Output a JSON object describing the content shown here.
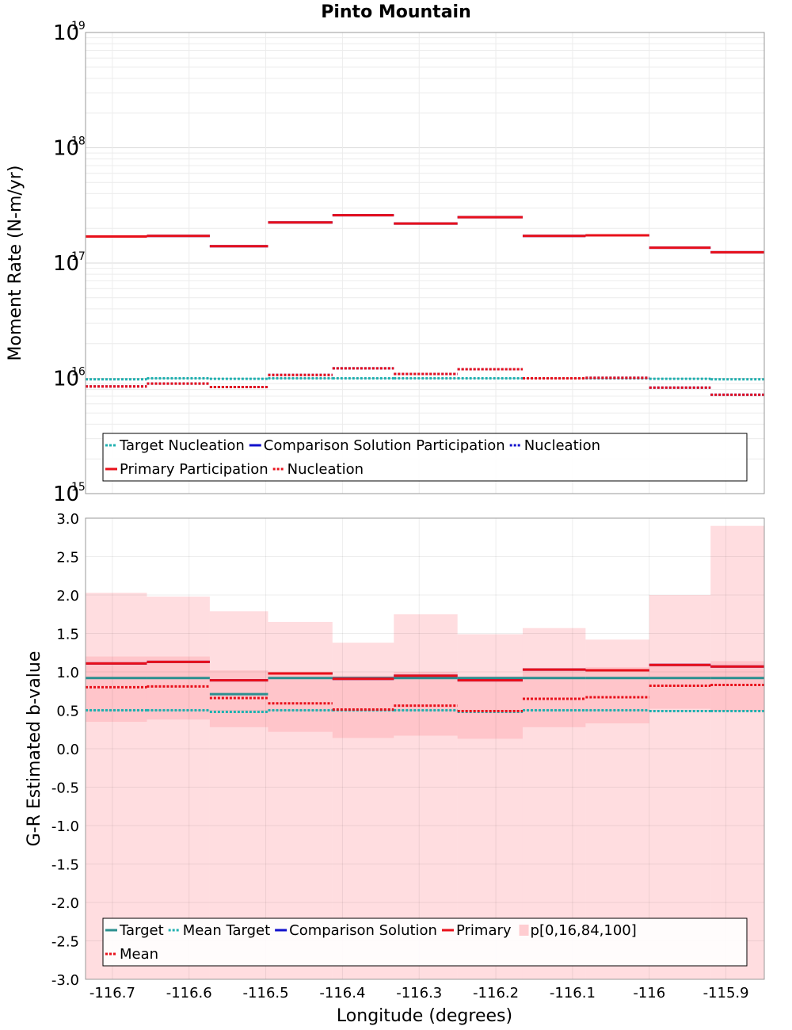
{
  "chart_data": [
    {
      "type": "line",
      "title": "Pinto Mountain",
      "xlabel": "",
      "ylabel": "Moment Rate (N-m/yr)",
      "yscale": "log",
      "ylim": [
        1000000000000000.0,
        1e+19
      ],
      "xlim": [
        -116.735,
        -115.85
      ],
      "grid": true,
      "legend_placement": "bottom",
      "y_tick_labels": [
        {
          "base": "10",
          "exp": "15",
          "value": 1000000000000000.0
        },
        {
          "base": "10",
          "exp": "16",
          "value": 1e+16
        },
        {
          "base": "10",
          "exp": "17",
          "value": 1e+17
        },
        {
          "base": "10",
          "exp": "18",
          "value": 1e+18
        },
        {
          "base": "10",
          "exp": "19",
          "value": 1e+19
        }
      ],
      "bin_edges": [
        -116.735,
        -116.655,
        -116.573,
        -116.497,
        -116.413,
        -116.333,
        -116.25,
        -116.165,
        -116.083,
        -116.0,
        -115.92,
        -115.85
      ],
      "series": [
        {
          "name": "Target Nucleation",
          "color": "#20b0b0",
          "dash": "dotted",
          "values": [
            9800000000000000.0,
            1e+16,
            9900000000000000.0,
            1e+16,
            1e+16,
            1e+16,
            1e+16,
            1e+16,
            1e+16,
            9900000000000000.0,
            9800000000000000.0
          ]
        },
        {
          "name": "Comparison Solution Participation",
          "color": "#1010cc",
          "dash": "solid",
          "values": [
            1.7e+17,
            1.72e+17,
            1.4e+17,
            2.25e+17,
            2.6e+17,
            2.2e+17,
            2.5e+17,
            1.72e+17,
            1.74e+17,
            1.36e+17,
            1.24e+17
          ]
        },
        {
          "name": "Nucleation",
          "color": "#1010cc",
          "dash": "dotted",
          "values": [
            8500000000000000.0,
            9000000000000000.0,
            8400000000000000.0,
            1.07e+16,
            1.22e+16,
            1.09e+16,
            1.2e+16,
            1e+16,
            1.01e+16,
            8300000000000000.0,
            7200000000000000.0
          ]
        },
        {
          "name": "Primary Participation",
          "color": "#e8101a",
          "dash": "solid",
          "values": [
            1.7e+17,
            1.72e+17,
            1.4e+17,
            2.25e+17,
            2.6e+17,
            2.2e+17,
            2.5e+17,
            1.72e+17,
            1.74e+17,
            1.36e+17,
            1.24e+17
          ]
        },
        {
          "name": "Nucleation",
          "color": "#e8101a",
          "dash": "dotted",
          "values": [
            8500000000000000.0,
            9000000000000000.0,
            8400000000000000.0,
            1.07e+16,
            1.22e+16,
            1.09e+16,
            1.2e+16,
            1e+16,
            1.01e+16,
            8300000000000000.0,
            7200000000000000.0
          ]
        }
      ],
      "legend": [
        [
          "Target Nucleation",
          "Comparison Solution Participation",
          "Nucleation"
        ],
        [
          "Primary Participation",
          "Nucleation"
        ]
      ]
    },
    {
      "type": "line",
      "title": "",
      "xlabel": "Longitude (degrees)",
      "ylabel": "G-R Estimated b-value",
      "ylim": [
        -3.0,
        3.0
      ],
      "xlim": [
        -116.735,
        -115.85
      ],
      "grid": true,
      "legend_placement": "bottom",
      "x_ticks": [
        -116.7,
        -116.6,
        -116.5,
        -116.4,
        -116.3,
        -116.2,
        -116.1,
        -116.0,
        -115.9
      ],
      "x_tick_labels": [
        "-116.7",
        "-116.6",
        "-116.5",
        "-116.4",
        "-116.3",
        "-116.2",
        "-116.1",
        "-116",
        "-115.9"
      ],
      "y_ticks": [
        3.0,
        2.5,
        2.0,
        1.5,
        1.0,
        0.5,
        0.0,
        -0.5,
        -1.0,
        -1.5,
        -2.0,
        -2.5,
        -3.0
      ],
      "y_tick_labels": [
        "3.0",
        "2.5",
        "2.0",
        "1.5",
        "1.0",
        "0.5",
        "0.0",
        "-0.5",
        "-1.0",
        "-1.5",
        "-2.0",
        "-2.5",
        "-3.0"
      ],
      "bin_edges": [
        -116.735,
        -116.655,
        -116.573,
        -116.497,
        -116.413,
        -116.333,
        -116.25,
        -116.165,
        -116.083,
        -116.0,
        -115.92,
        -115.85
      ],
      "band_outer": {
        "name": "p[0,16,84,100]",
        "color": "#ff9ea6",
        "low": [
          -3,
          -3,
          -3,
          -3,
          -3,
          -3,
          -3,
          -3,
          -3,
          -3,
          -3
        ],
        "high": [
          2.03,
          1.98,
          1.79,
          1.65,
          1.38,
          1.75,
          1.49,
          1.57,
          1.42,
          2.0,
          2.9
        ]
      },
      "band_inner": {
        "color": "#ff9ea6",
        "low": [
          0.35,
          0.38,
          0.28,
          0.22,
          0.14,
          0.17,
          0.13,
          0.28,
          0.33,
          0.52,
          0.49
        ],
        "high": [
          1.2,
          1.2,
          1.02,
          1.0,
          0.95,
          1.0,
          0.94,
          1.05,
          1.06,
          1.1,
          1.14
        ]
      },
      "series": [
        {
          "name": "Target",
          "color": "#2b8f8f",
          "dash": "solid",
          "values": [
            0.92,
            0.92,
            0.71,
            0.92,
            0.92,
            0.92,
            0.92,
            0.92,
            0.92,
            0.92,
            0.92
          ]
        },
        {
          "name": "Mean Target",
          "color": "#20b0b0",
          "dash": "dotted",
          "values": [
            0.5,
            0.5,
            0.48,
            0.5,
            0.5,
            0.5,
            0.48,
            0.5,
            0.5,
            0.49,
            0.49
          ]
        },
        {
          "name": "Comparison Solution",
          "color": "#1010cc",
          "dash": "solid",
          "values": [
            1.11,
            1.13,
            0.89,
            0.98,
            0.91,
            0.95,
            0.89,
            1.03,
            1.02,
            1.09,
            1.07
          ]
        },
        {
          "name": "Primary",
          "color": "#e8101a",
          "dash": "solid",
          "values": [
            1.11,
            1.13,
            0.89,
            0.98,
            0.91,
            0.95,
            0.89,
            1.03,
            1.02,
            1.09,
            1.07
          ]
        },
        {
          "name": "Mean",
          "color": "#e8101a",
          "dash": "dotted",
          "values": [
            0.8,
            0.81,
            0.66,
            0.59,
            0.51,
            0.56,
            0.49,
            0.65,
            0.67,
            0.82,
            0.83
          ]
        }
      ],
      "legend": [
        [
          "Target",
          "Mean Target",
          "Comparison Solution",
          "Primary",
          "p[0,16,84,100]"
        ],
        [
          "Mean"
        ]
      ]
    }
  ]
}
